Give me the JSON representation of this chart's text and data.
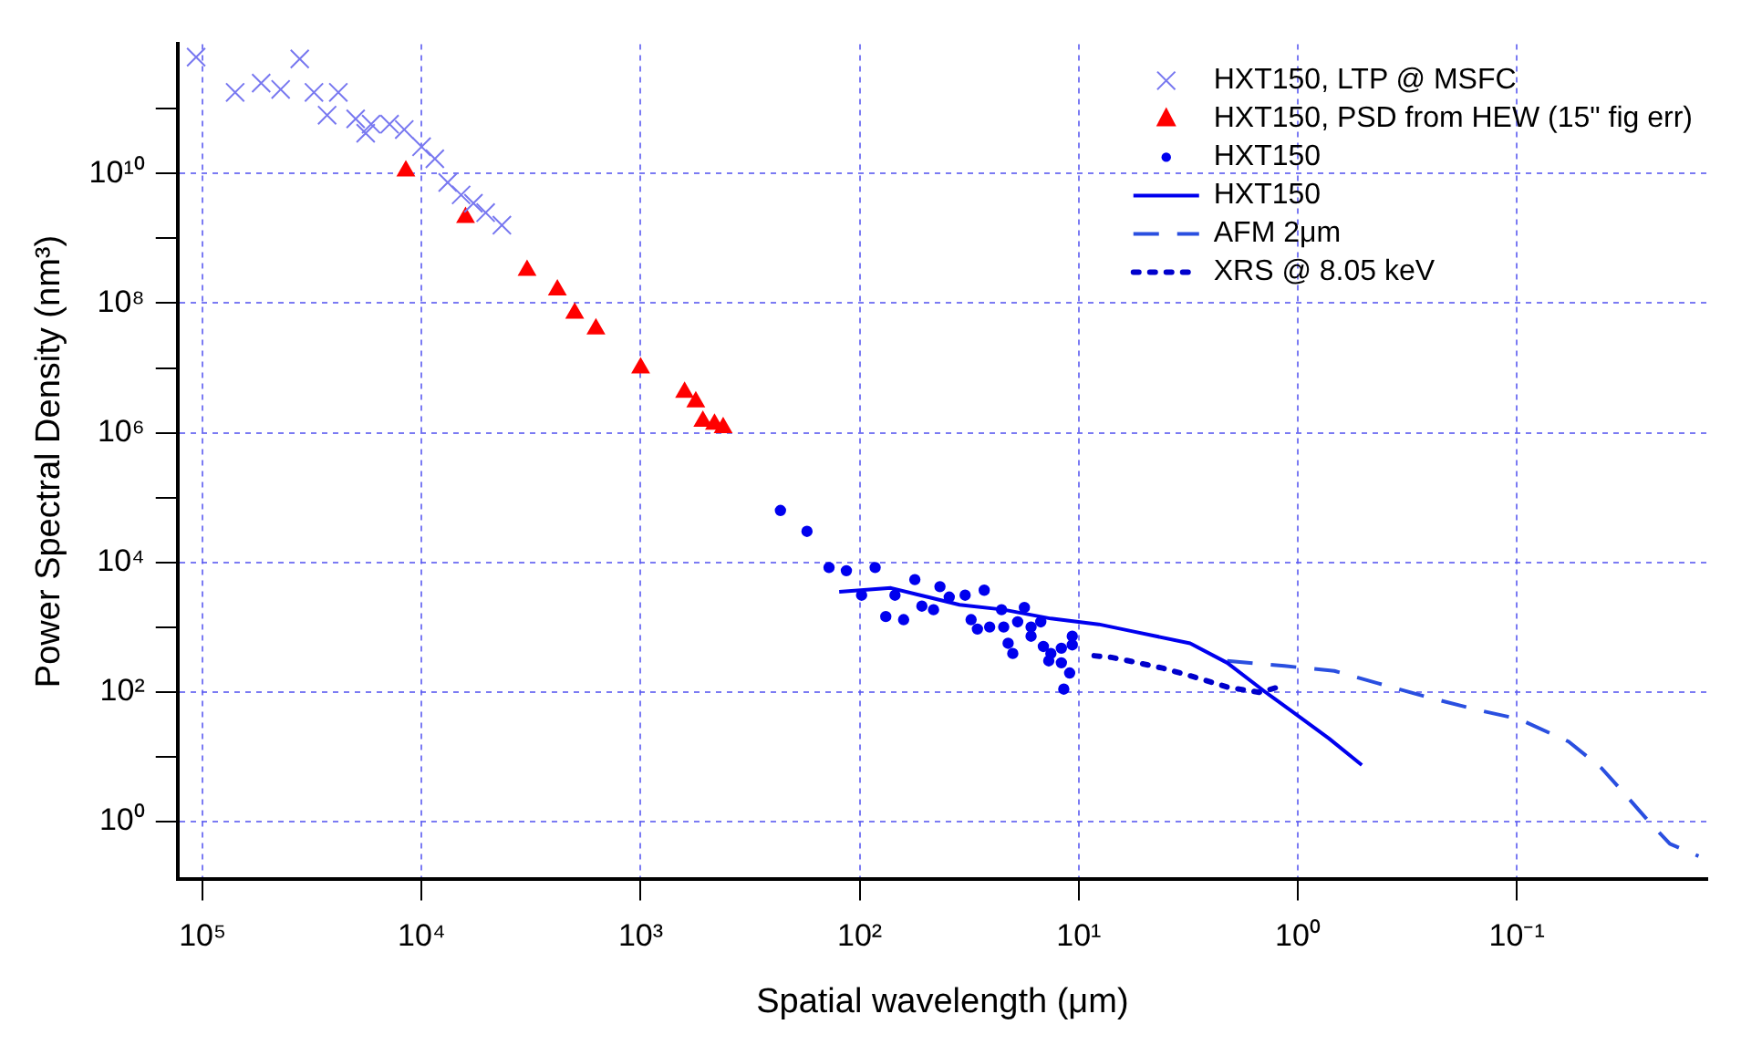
{
  "chart_data": {
    "type": "scatter",
    "xlabel": "Spatial wavelength (μm)",
    "ylabel": "Power Spectral Density (nm³)",
    "log": "xy",
    "xlim": [
      130000,
      0.0135
    ],
    "xticks": [
      {
        "value": 100000,
        "label": "10⁵"
      },
      {
        "value": 10000,
        "label": "10⁴"
      },
      {
        "value": 1000,
        "label": "10³"
      },
      {
        "value": 100,
        "label": "10²"
      },
      {
        "value": 10,
        "label": "10¹"
      },
      {
        "value": 1,
        "label": "10⁰"
      },
      {
        "value": 0.1,
        "label": "10⁻¹"
      }
    ],
    "ylim": [
      0.13,
      1000000000000
    ],
    "yticks": [
      {
        "value": 1,
        "label": "10⁰"
      },
      {
        "value": 10,
        "label": null
      },
      {
        "value": 100,
        "label": "10²"
      },
      {
        "value": 1000,
        "label": null
      },
      {
        "value": 10000,
        "label": "10⁴"
      },
      {
        "value": 100000,
        "label": null
      },
      {
        "value": 1000000,
        "label": "10⁶"
      },
      {
        "value": 10000000,
        "label": null
      },
      {
        "value": 100000000,
        "label": "10⁸"
      },
      {
        "value": 1000000000,
        "label": null
      },
      {
        "value": 10000000000,
        "label": "10¹⁰"
      },
      {
        "value": 100000000000,
        "label": null
      }
    ],
    "grid": true,
    "legend": "top right",
    "series": [
      {
        "name": "HXT150, LTP @ MSFC",
        "marker": "cross",
        "color": "#7878f0",
        "x": [
          107000,
          71000,
          54000,
          44000,
          36000,
          31000,
          24000,
          27000,
          20000,
          18000,
          17000,
          14000,
          12000,
          10000,
          8700,
          7600,
          6600,
          5800,
          5100,
          4300
        ],
        "values": [
          630000000000,
          180000000000,
          250000000000,
          200000000000,
          590000000000,
          180000000000,
          180000000000,
          80000000000,
          70000000000,
          42000000000,
          58000000000,
          58000000000,
          48000000000,
          26000000000,
          17000000000,
          7300000000,
          4700000000,
          3500000000,
          2500000000,
          1600000000
        ]
      },
      {
        "name": "HXT150, PSD from HEW (15\" fig err)",
        "marker": "triangle",
        "color": "#ff0000",
        "x": [
          11800,
          6300,
          3300,
          2400,
          2000,
          1600,
          1000,
          630,
          560,
          520,
          460,
          420
        ],
        "values": [
          11000000000,
          2100000000,
          320000000,
          160000000,
          70000000,
          40000000,
          10000000,
          4200000,
          3000000,
          1500000,
          1350000,
          1200000
        ]
      },
      {
        "name": "HXT150",
        "marker": "circle",
        "color": "#0000ee",
        "x": [
          230,
          174,
          138,
          115,
          85,
          98,
          76,
          63,
          69,
          56,
          52,
          46,
          43,
          39,
          33,
          27,
          31,
          29,
          25.5,
          22.5,
          22,
          21,
          20,
          17.7,
          19,
          16.5,
          14.9,
          16.5,
          14.5,
          13.4,
          13.7,
          12,
          10.7,
          10.7,
          12,
          11,
          11.7
        ],
        "values": [
          63000,
          30000,
          8300,
          7400,
          8300,
          3100,
          1450,
          1300,
          3100,
          5400,
          2100,
          1850,
          4200,
          2900,
          3100,
          3700,
          1300,
          930,
          1000,
          1850,
          1000,
          560,
          390,
          2000,
          1200,
          1000,
          1200,
          720,
          500,
          390,
          300,
          470,
          720,
          530,
          280,
          195,
          110
        ]
      },
      {
        "name": "HXT150",
        "type": "line",
        "line_style": "solid",
        "color": "#0000ee",
        "x": [
          124,
          72,
          55,
          35,
          22,
          13.4,
          8.1,
          5.8,
          3.1,
          2.1,
          1.4,
          1.08,
          0.72,
          0.51
        ],
        "values": [
          3500,
          4000,
          3200,
          2200,
          1850,
          1350,
          1100,
          870,
          560,
          280,
          98,
          52,
          19,
          7.4
        ]
      },
      {
        "name": "AFM 2μm",
        "type": "line",
        "line_style": "dashed",
        "color": "#2a4fe0",
        "x": [
          2.1,
          1.15,
          0.68,
          0.43,
          0.25,
          0.15,
          0.098,
          0.058,
          0.041,
          0.032,
          0.025,
          0.02,
          0.0148
        ],
        "values": [
          300,
          250,
          210,
          135,
          81,
          52,
          38,
          17,
          6.6,
          2.6,
          1.0,
          0.45,
          0.29
        ]
      },
      {
        "name": "XRS @ 8.05 keV",
        "type": "line",
        "line_style": "dotted",
        "color": "#0000cc",
        "x": [
          8.5,
          7.1,
          5.9,
          4.1,
          2.8,
          2.1,
          1.5,
          1.15
        ],
        "values": [
          360,
          340,
          300,
          230,
          160,
          118,
          98,
          125
        ]
      }
    ]
  }
}
